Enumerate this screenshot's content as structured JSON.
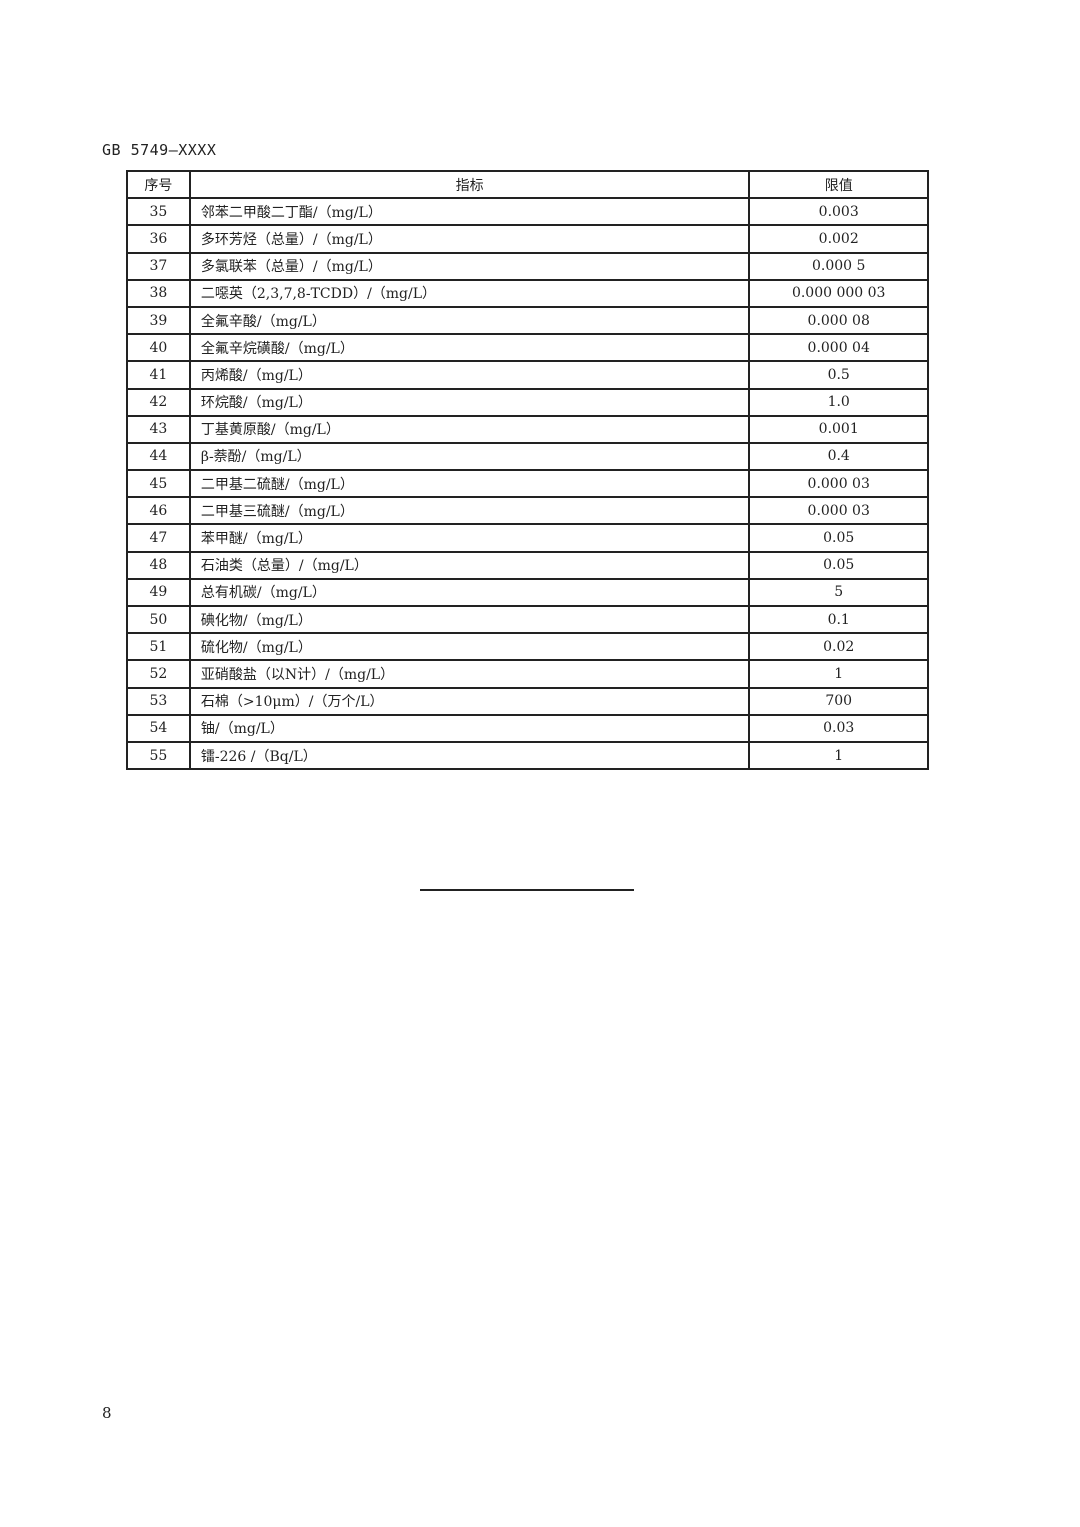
{
  "header": "GB 5749—XXXX",
  "table": {
    "columns": [
      "序号",
      "指标",
      "限值"
    ],
    "rows": [
      [
        "35",
        "邻苯二甲酸二丁酯/（mg/L）",
        "0.003"
      ],
      [
        "36",
        "多环芳烃（总量）/（mg/L）",
        "0.002"
      ],
      [
        "37",
        "多氯联苯（总量）/（mg/L）",
        "0.000 5"
      ],
      [
        "38",
        "二噁英（2,3,7,8-TCDD）/（mg/L）",
        "0.000 000 03"
      ],
      [
        "39",
        "全氟辛酸/（mg/L）",
        "0.000 08"
      ],
      [
        "40",
        "全氟辛烷磺酸/（mg/L）",
        "0.000 04"
      ],
      [
        "41",
        "丙烯酸/（mg/L）",
        "0.5"
      ],
      [
        "42",
        "环烷酸/（mg/L）",
        "1.0"
      ],
      [
        "43",
        "丁基黄原酸/（mg/L）",
        "0.001"
      ],
      [
        "44",
        "β-萘酚/（mg/L）",
        "0.4"
      ],
      [
        "45",
        "二甲基二硫醚/（mg/L）",
        "0.000 03"
      ],
      [
        "46",
        "二甲基三硫醚/（mg/L）",
        "0.000 03"
      ],
      [
        "47",
        "苯甲醚/（mg/L）",
        "0.05"
      ],
      [
        "48",
        "石油类（总量）/（mg/L）",
        "0.05"
      ],
      [
        "49",
        "总有机碳/（mg/L）",
        "5"
      ],
      [
        "50",
        "碘化物/（mg/L）",
        "0.1"
      ],
      [
        "51",
        "硫化物/（mg/L）",
        "0.02"
      ],
      [
        "52",
        "亚硝酸盐（以N计）/（mg/L）",
        "1"
      ],
      [
        "53",
        "石棉（>10μm）/（万个/L）",
        "700"
      ],
      [
        "54",
        "铀/（mg/L）",
        "0.03"
      ],
      [
        "55",
        "镭-226 /（Bq/L）",
        "1"
      ]
    ]
  },
  "page_number": "8"
}
